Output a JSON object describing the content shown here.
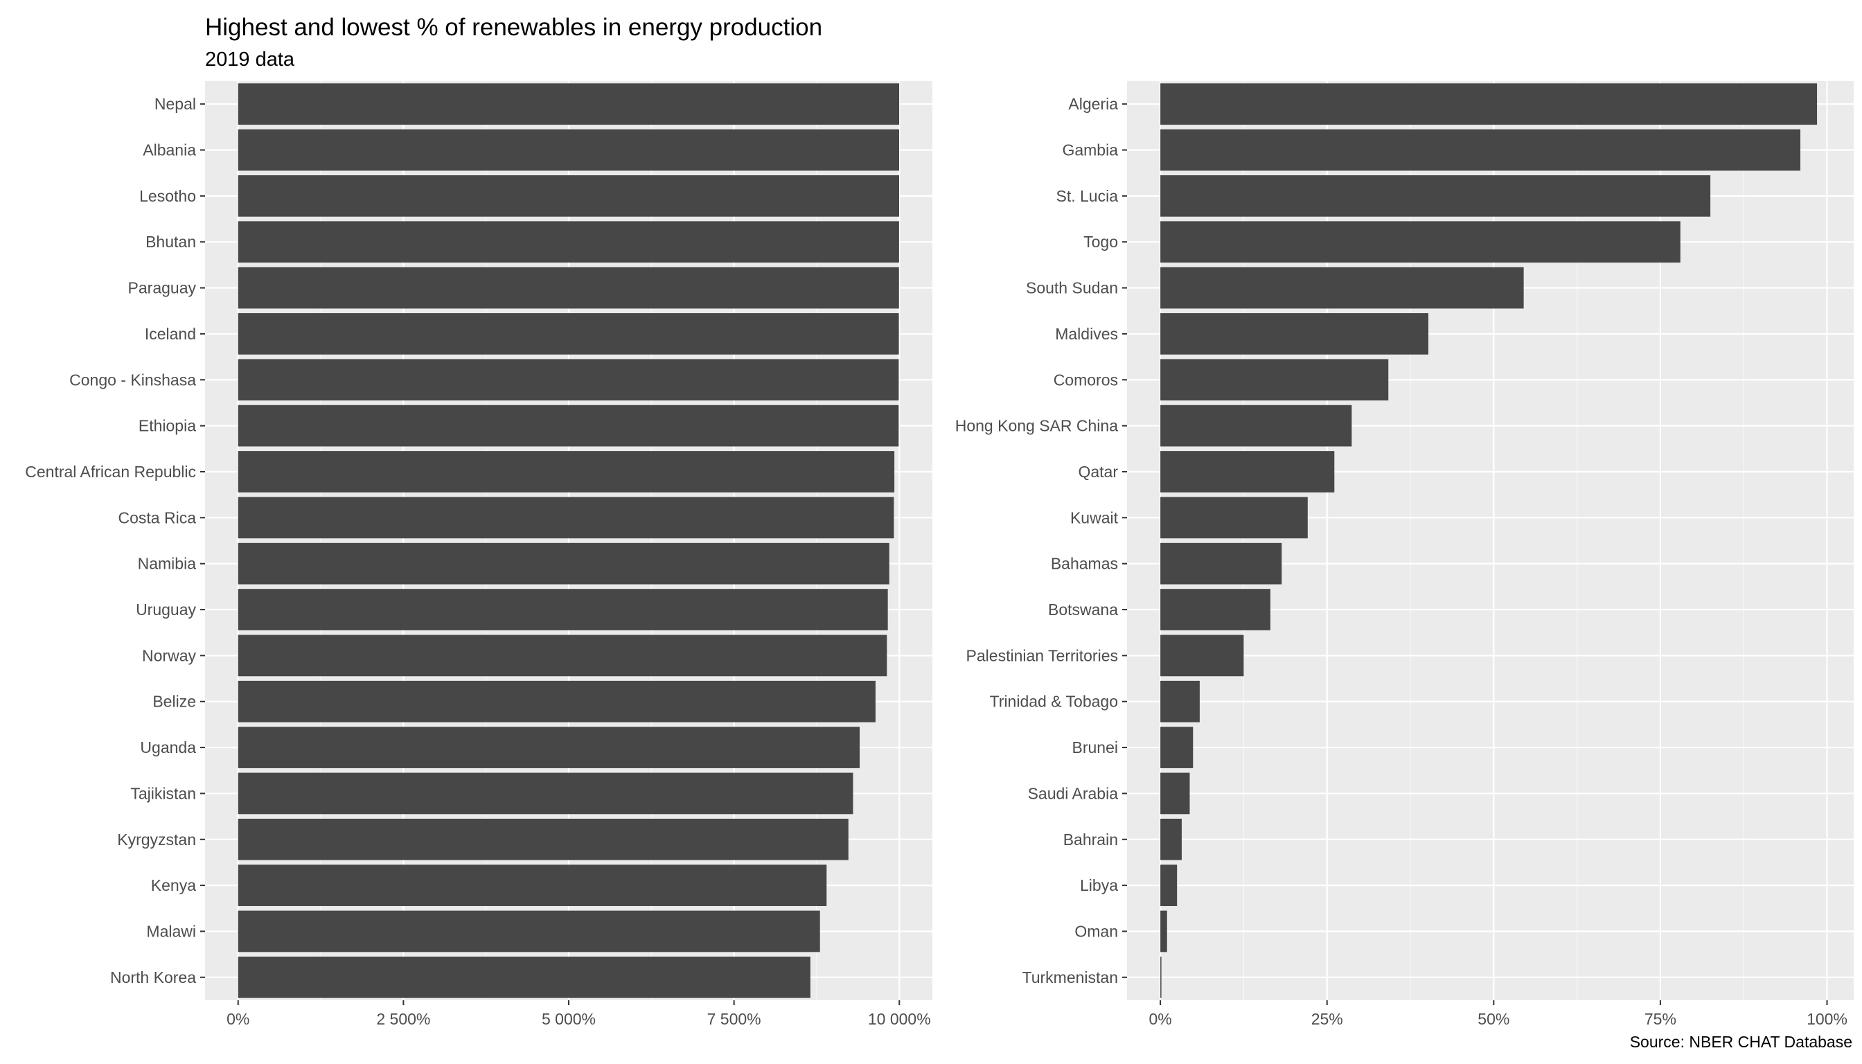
{
  "header": {
    "title": "Highest and lowest % of renewables in energy production",
    "subtitle": "2019 data"
  },
  "caption": "Source: NBER CHAT Database",
  "colors": {
    "panel_bg": "#ebebeb",
    "grid": "#ffffff",
    "bar": "#474747",
    "axis_text": "#4d4d4d"
  },
  "chart_data": [
    {
      "type": "bar",
      "orientation": "horizontal",
      "title": "Highest and lowest % of renewables in energy production",
      "subtitle": "2019 data",
      "xlabel": "",
      "ylabel": "",
      "xlim": [
        -500,
        10500
      ],
      "x_ticks": [
        0,
        2500,
        5000,
        7500,
        10000
      ],
      "x_tick_labels": [
        "0%",
        "2 500%",
        "5 000%",
        "7 500%",
        "10 000%"
      ],
      "grid": true,
      "categories": [
        "Nepal",
        "Albania",
        "Lesotho",
        "Bhutan",
        "Paraguay",
        "Iceland",
        "Congo - Kinshasa",
        "Ethiopia",
        "Central African Republic",
        "Costa Rica",
        "Namibia",
        "Uruguay",
        "Norway",
        "Belize",
        "Uganda",
        "Tajikistan",
        "Kyrgyzstan",
        "Kenya",
        "Malawi",
        "North Korea"
      ],
      "values": [
        9998,
        9997,
        9997,
        9996,
        9995,
        9993,
        9991,
        9990,
        9925,
        9918,
        9848,
        9826,
        9812,
        9640,
        9400,
        9300,
        9230,
        8900,
        8800,
        8655
      ]
    },
    {
      "type": "bar",
      "orientation": "horizontal",
      "xlabel": "",
      "ylabel": "",
      "xlim": [
        -5,
        104
      ],
      "x_ticks": [
        0,
        25,
        50,
        75,
        100
      ],
      "x_tick_labels": [
        "0%",
        "25%",
        "50%",
        "75%",
        "100%"
      ],
      "grid": true,
      "categories": [
        "Algeria",
        "Gambia",
        "St. Lucia",
        "Togo",
        "South Sudan",
        "Maldives",
        "Comoros",
        "Hong Kong SAR China",
        "Qatar",
        "Kuwait",
        "Bahamas",
        "Botswana",
        "Palestinian Territories",
        "Trinidad & Tobago",
        "Brunei",
        "Saudi Arabia",
        "Bahrain",
        "Libya",
        "Oman",
        "Turkmenistan"
      ],
      "values": [
        98.5,
        96.0,
        82.5,
        78.0,
        54.5,
        40.2,
        34.2,
        28.7,
        26.1,
        22.1,
        18.2,
        16.5,
        12.5,
        5.9,
        4.9,
        4.4,
        3.2,
        2.5,
        1.0,
        0.1
      ]
    }
  ]
}
